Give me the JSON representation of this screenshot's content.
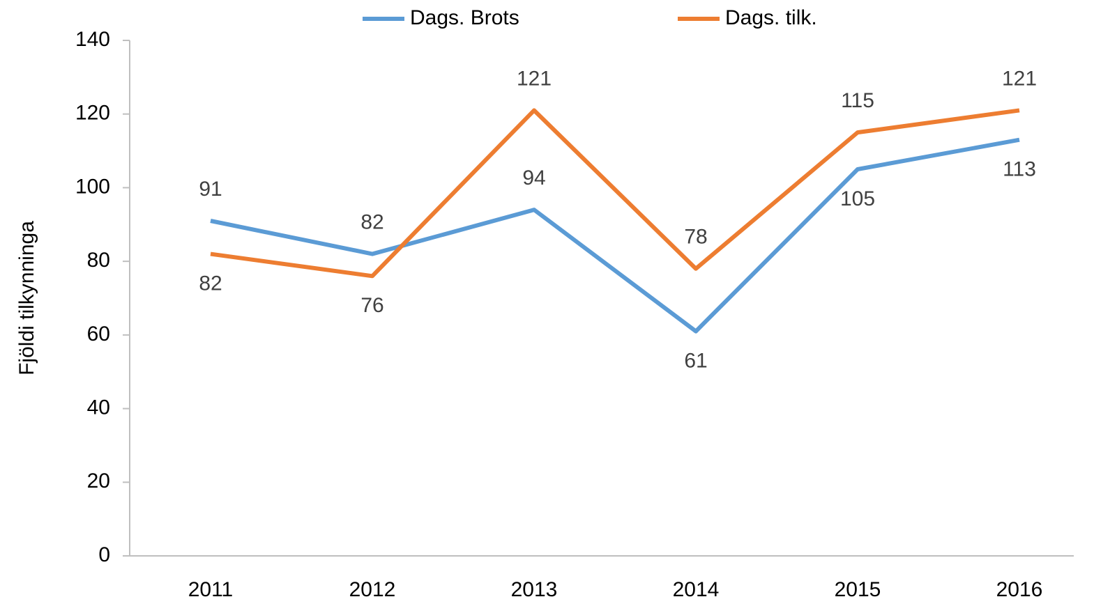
{
  "chart_data": {
    "type": "line",
    "y_label": "Fjöldi tilkynninga",
    "categories": [
      "2011",
      "2012",
      "2013",
      "2014",
      "2015",
      "2016"
    ],
    "series": [
      {
        "name": "Dags. Brots",
        "color": "#5b9bd5",
        "values": [
          91,
          82,
          94,
          61,
          105,
          113
        ]
      },
      {
        "name": "Dags. tilk.",
        "color": "#ed7d31",
        "values": [
          82,
          76,
          121,
          78,
          115,
          121
        ]
      }
    ],
    "ylim": [
      0,
      140
    ],
    "yticks": [
      0,
      20,
      40,
      60,
      80,
      100,
      120,
      140
    ],
    "grid": false,
    "legend": "top"
  }
}
